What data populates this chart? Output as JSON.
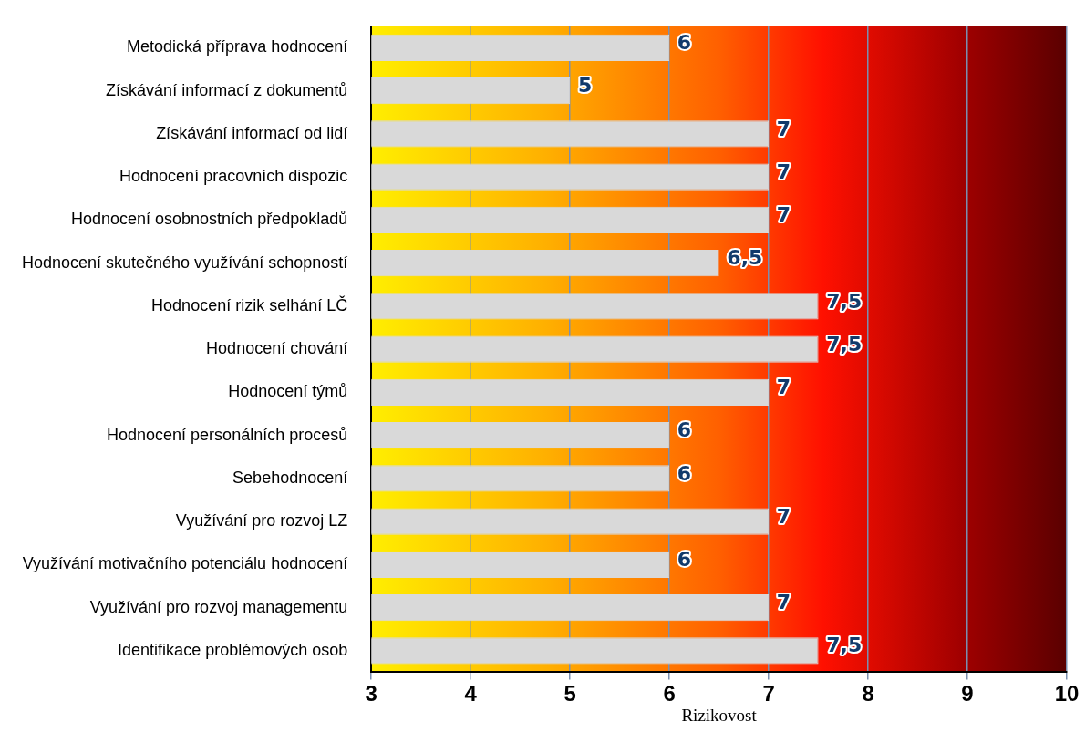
{
  "chart_data": {
    "type": "bar",
    "orientation": "horizontal",
    "xlabel": "Rizikovost",
    "categories": [
      "Metodická příprava hodnocení",
      "Získávání informací z dokumentů",
      "Získávání informací od lidí",
      "Hodnocení pracovních dispozic",
      "Hodnocení osobnostních předpokladů",
      "Hodnocení skutečného využívání schopností",
      "Hodnocení rizik selhání LČ",
      "Hodnocení chování",
      "Hodnocení týmů",
      "Hodnocení personálních procesů",
      "Sebehodnocení",
      "Využívání pro rozvoj LZ",
      "Využívání motivačního potenciálu hodnocení",
      "Využívání pro rozvoj managementu",
      "Identifikace problémových osob"
    ],
    "values": [
      6,
      5,
      7,
      7,
      7,
      6.5,
      7.5,
      7.5,
      7,
      6,
      6,
      7,
      6,
      7,
      7.5
    ],
    "value_labels": [
      "6",
      "5",
      "7",
      "7",
      "7",
      "6,5",
      "7,5",
      "7,5",
      "7",
      "6",
      "6",
      "7",
      "6",
      "7",
      "7,5"
    ],
    "color": "#d9d9d9",
    "xlim": [
      3,
      10
    ],
    "xticks": [
      3,
      4,
      5,
      6,
      7,
      8,
      9,
      10
    ],
    "grid": "x",
    "legend": false
  }
}
